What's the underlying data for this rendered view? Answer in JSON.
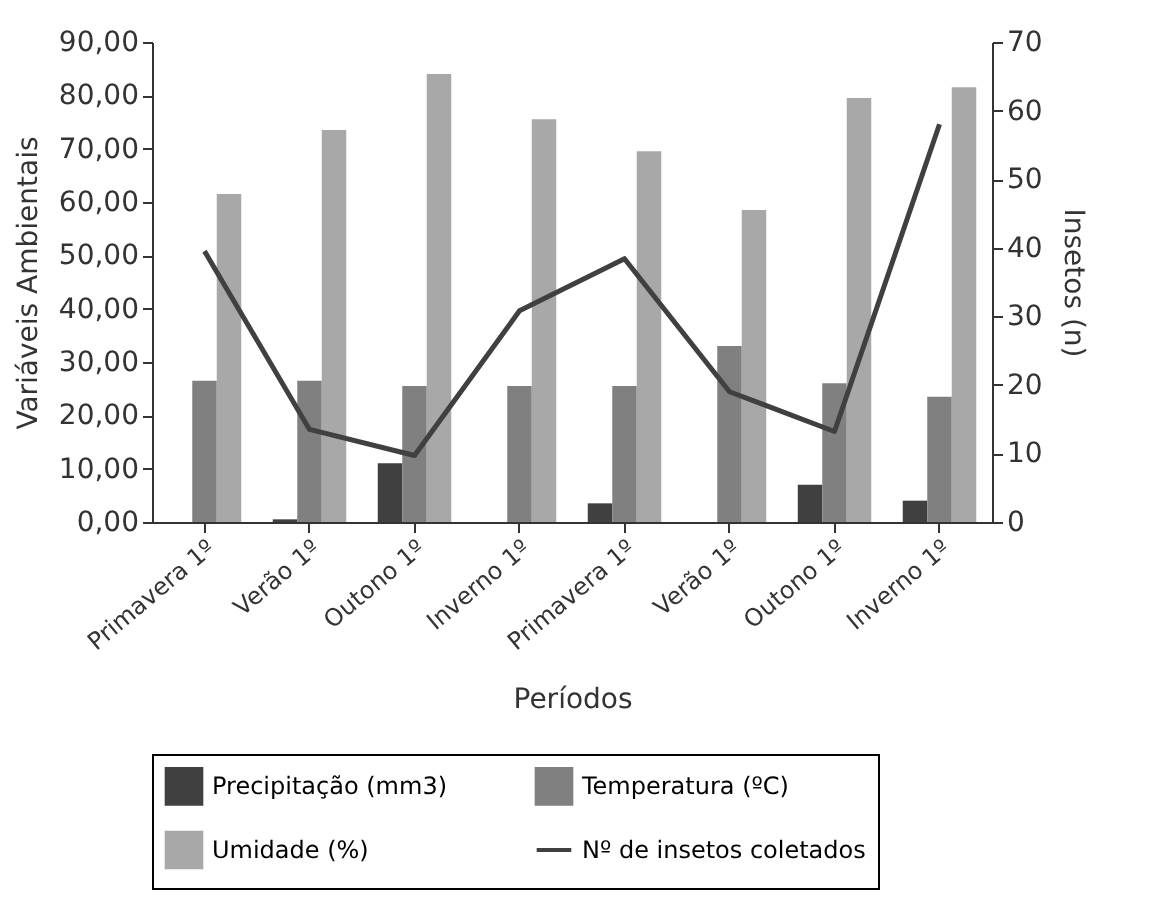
{
  "chart_data": {
    "type": "bar",
    "xlabel": "Períodos",
    "ylabel": "Variáveis Ambientais",
    "y2label": "Insetos (n)",
    "categories": [
      "Primavera 1º",
      "Verão 1º",
      "Outono 1º",
      "Inverno 1º",
      "Primavera 1º",
      "Verão 1º",
      "Outono 1º",
      "Inverno 1º"
    ],
    "series": [
      {
        "name": "Precipitação (mm3)",
        "color": "#404040",
        "values": [
          0,
          0.5,
          11,
          0,
          3.5,
          0,
          7,
          4
        ]
      },
      {
        "name": "Temperatura (ºC)",
        "color": "#808080",
        "values": [
          26.5,
          26.5,
          25.5,
          25.5,
          25.5,
          33,
          26,
          23.5
        ]
      },
      {
        "name": "Umidade (%)",
        "color": "#a8a8a8",
        "values": [
          61.5,
          73.5,
          84,
          75.5,
          69.5,
          58.5,
          79.5,
          81.5
        ]
      },
      {
        "name": "Nº de insetos coletados",
        "type": "line",
        "axis": "y2",
        "color": "#404040",
        "values": [
          39.5,
          13.5,
          9.7,
          30.8,
          38.4,
          19,
          13.2,
          58
        ]
      }
    ],
    "ylim": [
      0,
      90
    ],
    "yticks": [
      {
        "value": 0,
        "label": "0,00"
      },
      {
        "value": 10,
        "label": "10,00"
      },
      {
        "value": 20,
        "label": "20,00"
      },
      {
        "value": 30,
        "label": "30,00"
      },
      {
        "value": 40,
        "label": "40,00"
      },
      {
        "value": 50,
        "label": "50,00"
      },
      {
        "value": 60,
        "label": "60,00"
      },
      {
        "value": 70,
        "label": "70,00"
      },
      {
        "value": 80,
        "label": "80,00"
      },
      {
        "value": 90,
        "label": "90,00"
      }
    ],
    "y2lim": [
      0,
      70
    ],
    "y2ticks": [
      0,
      10,
      20,
      30,
      40,
      50,
      60,
      70
    ],
    "grid": false,
    "legend": "bottom"
  }
}
